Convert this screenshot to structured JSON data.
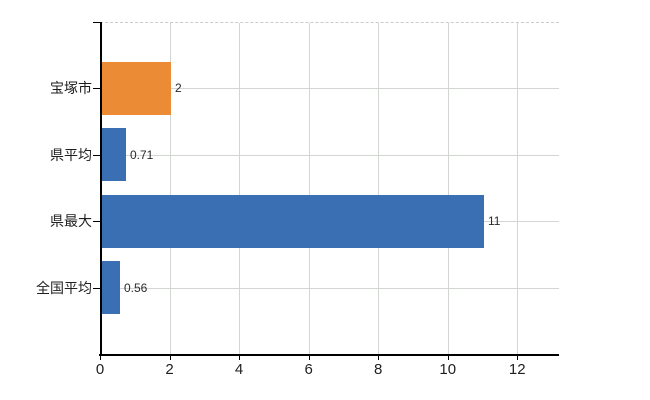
{
  "chart_data": {
    "type": "bar",
    "orientation": "horizontal",
    "title": "",
    "xlabel": "",
    "ylabel": "",
    "categories": [
      "宝塚市",
      "県平均",
      "県最大",
      "全国平均"
    ],
    "values": [
      2,
      0.71,
      11,
      0.56
    ],
    "value_labels": [
      "2",
      "0.71",
      "11",
      "0.56"
    ],
    "bar_colors": [
      "#ec8b36",
      "#3b6fb3",
      "#3b6fb3",
      "#3b6fb3"
    ],
    "highlight_color": "#ec8b36",
    "default_color": "#3b6fb3",
    "xlim": [
      0,
      13.2
    ],
    "xticks": [
      0,
      2,
      4,
      6,
      8,
      10,
      12
    ],
    "xtick_labels": [
      "0",
      "2",
      "4",
      "6",
      "8",
      "10",
      "12"
    ],
    "grid": true,
    "legend": null
  },
  "colors": {
    "background": "#ffffff",
    "axis": "#000000",
    "gridline": "#d2d6d1",
    "top_border_dashed": "#c9cdc9",
    "label_text": "#1f1f1f",
    "value_text": "#2a2a2a"
  }
}
